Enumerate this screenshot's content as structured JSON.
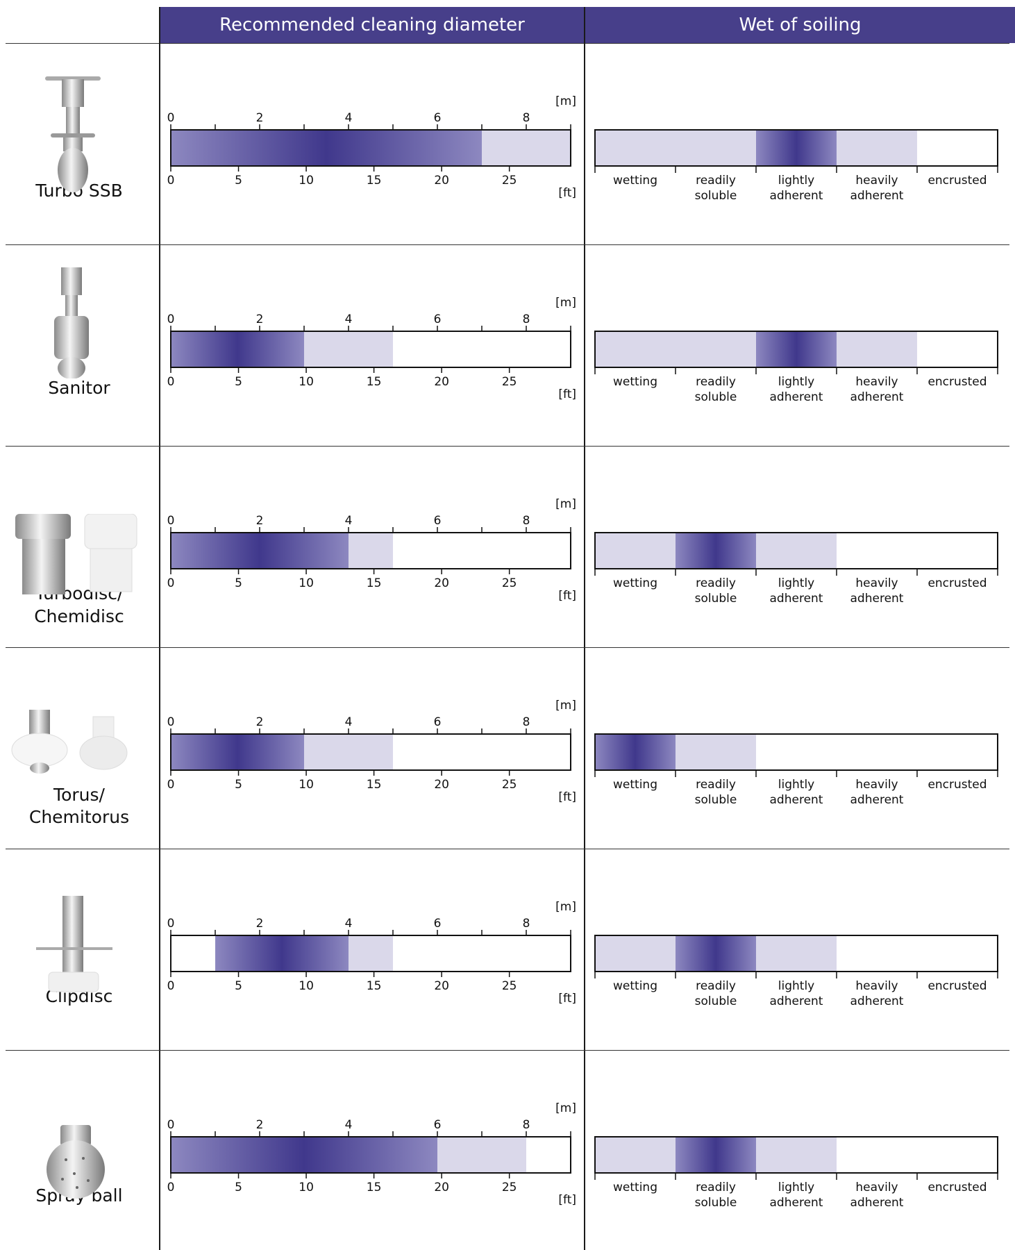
{
  "headers": {
    "diameter": "Recommended cleaning diameter",
    "soiling": "Wet of soiling"
  },
  "colors": {
    "header_bg": "#473f8a",
    "bar_dark": "#40388c",
    "bar_light": "#dad8ea"
  },
  "chart_data": {
    "type": "table",
    "m_axis": {
      "unit": "[m]",
      "ticks": [
        "0",
        "2",
        "4",
        "6",
        "8"
      ],
      "range": [
        0,
        9
      ]
    },
    "ft_axis": {
      "unit": "[ft]",
      "ticks": [
        "0",
        "5",
        "10",
        "15",
        "20",
        "25"
      ]
    },
    "soiling_categories": [
      [
        "wetting"
      ],
      [
        "readily",
        "soluble"
      ],
      [
        "lightly",
        "adherent"
      ],
      [
        "heavily",
        "adherent"
      ],
      [
        "encrusted"
      ]
    ],
    "products": [
      {
        "name": [
          "Turbo SSB"
        ],
        "image": "turbo-ssb-nozzle",
        "diameter_recommended_m": [
          0,
          7
        ],
        "diameter_max_m": 9,
        "soiling_recommended": "lightly adherent",
        "soiling_range": [
          "wetting",
          "heavily adherent"
        ]
      },
      {
        "name": [
          "Sanitor"
        ],
        "image": "sanitor-nozzle",
        "diameter_recommended_m": [
          0,
          3
        ],
        "diameter_max_m": 5,
        "soiling_recommended": "lightly adherent",
        "soiling_range": [
          "wetting",
          "heavily adherent"
        ]
      },
      {
        "name": [
          "Turbodisc/",
          "Chemidisc"
        ],
        "image": "turbodisc-chemidisc-nozzles",
        "diameter_recommended_m": [
          0,
          4
        ],
        "diameter_max_m": 5,
        "soiling_recommended": "readily soluble",
        "soiling_range": [
          "wetting",
          "lightly adherent"
        ]
      },
      {
        "name": [
          "Torus/",
          "Chemitorus"
        ],
        "image": "torus-chemitorus-nozzles",
        "diameter_recommended_m": [
          0,
          3
        ],
        "diameter_max_m": 5,
        "soiling_recommended": "wetting",
        "soiling_range": [
          "wetting",
          "readily soluble"
        ]
      },
      {
        "name": [
          "Clipdisc"
        ],
        "image": "clipdisc-nozzle",
        "diameter_min_m": 1,
        "diameter_recommended_m": [
          1,
          4
        ],
        "diameter_max_m": 5,
        "soiling_recommended": "readily soluble",
        "soiling_range": [
          "wetting",
          "lightly adherent"
        ]
      },
      {
        "name": [
          "Spray ball"
        ],
        "image": "spray-ball-nozzle",
        "diameter_recommended_m": [
          0,
          6
        ],
        "diameter_max_m": 8,
        "soiling_recommended": "readily soluble",
        "soiling_range": [
          "wetting",
          "lightly adherent"
        ]
      }
    ]
  }
}
